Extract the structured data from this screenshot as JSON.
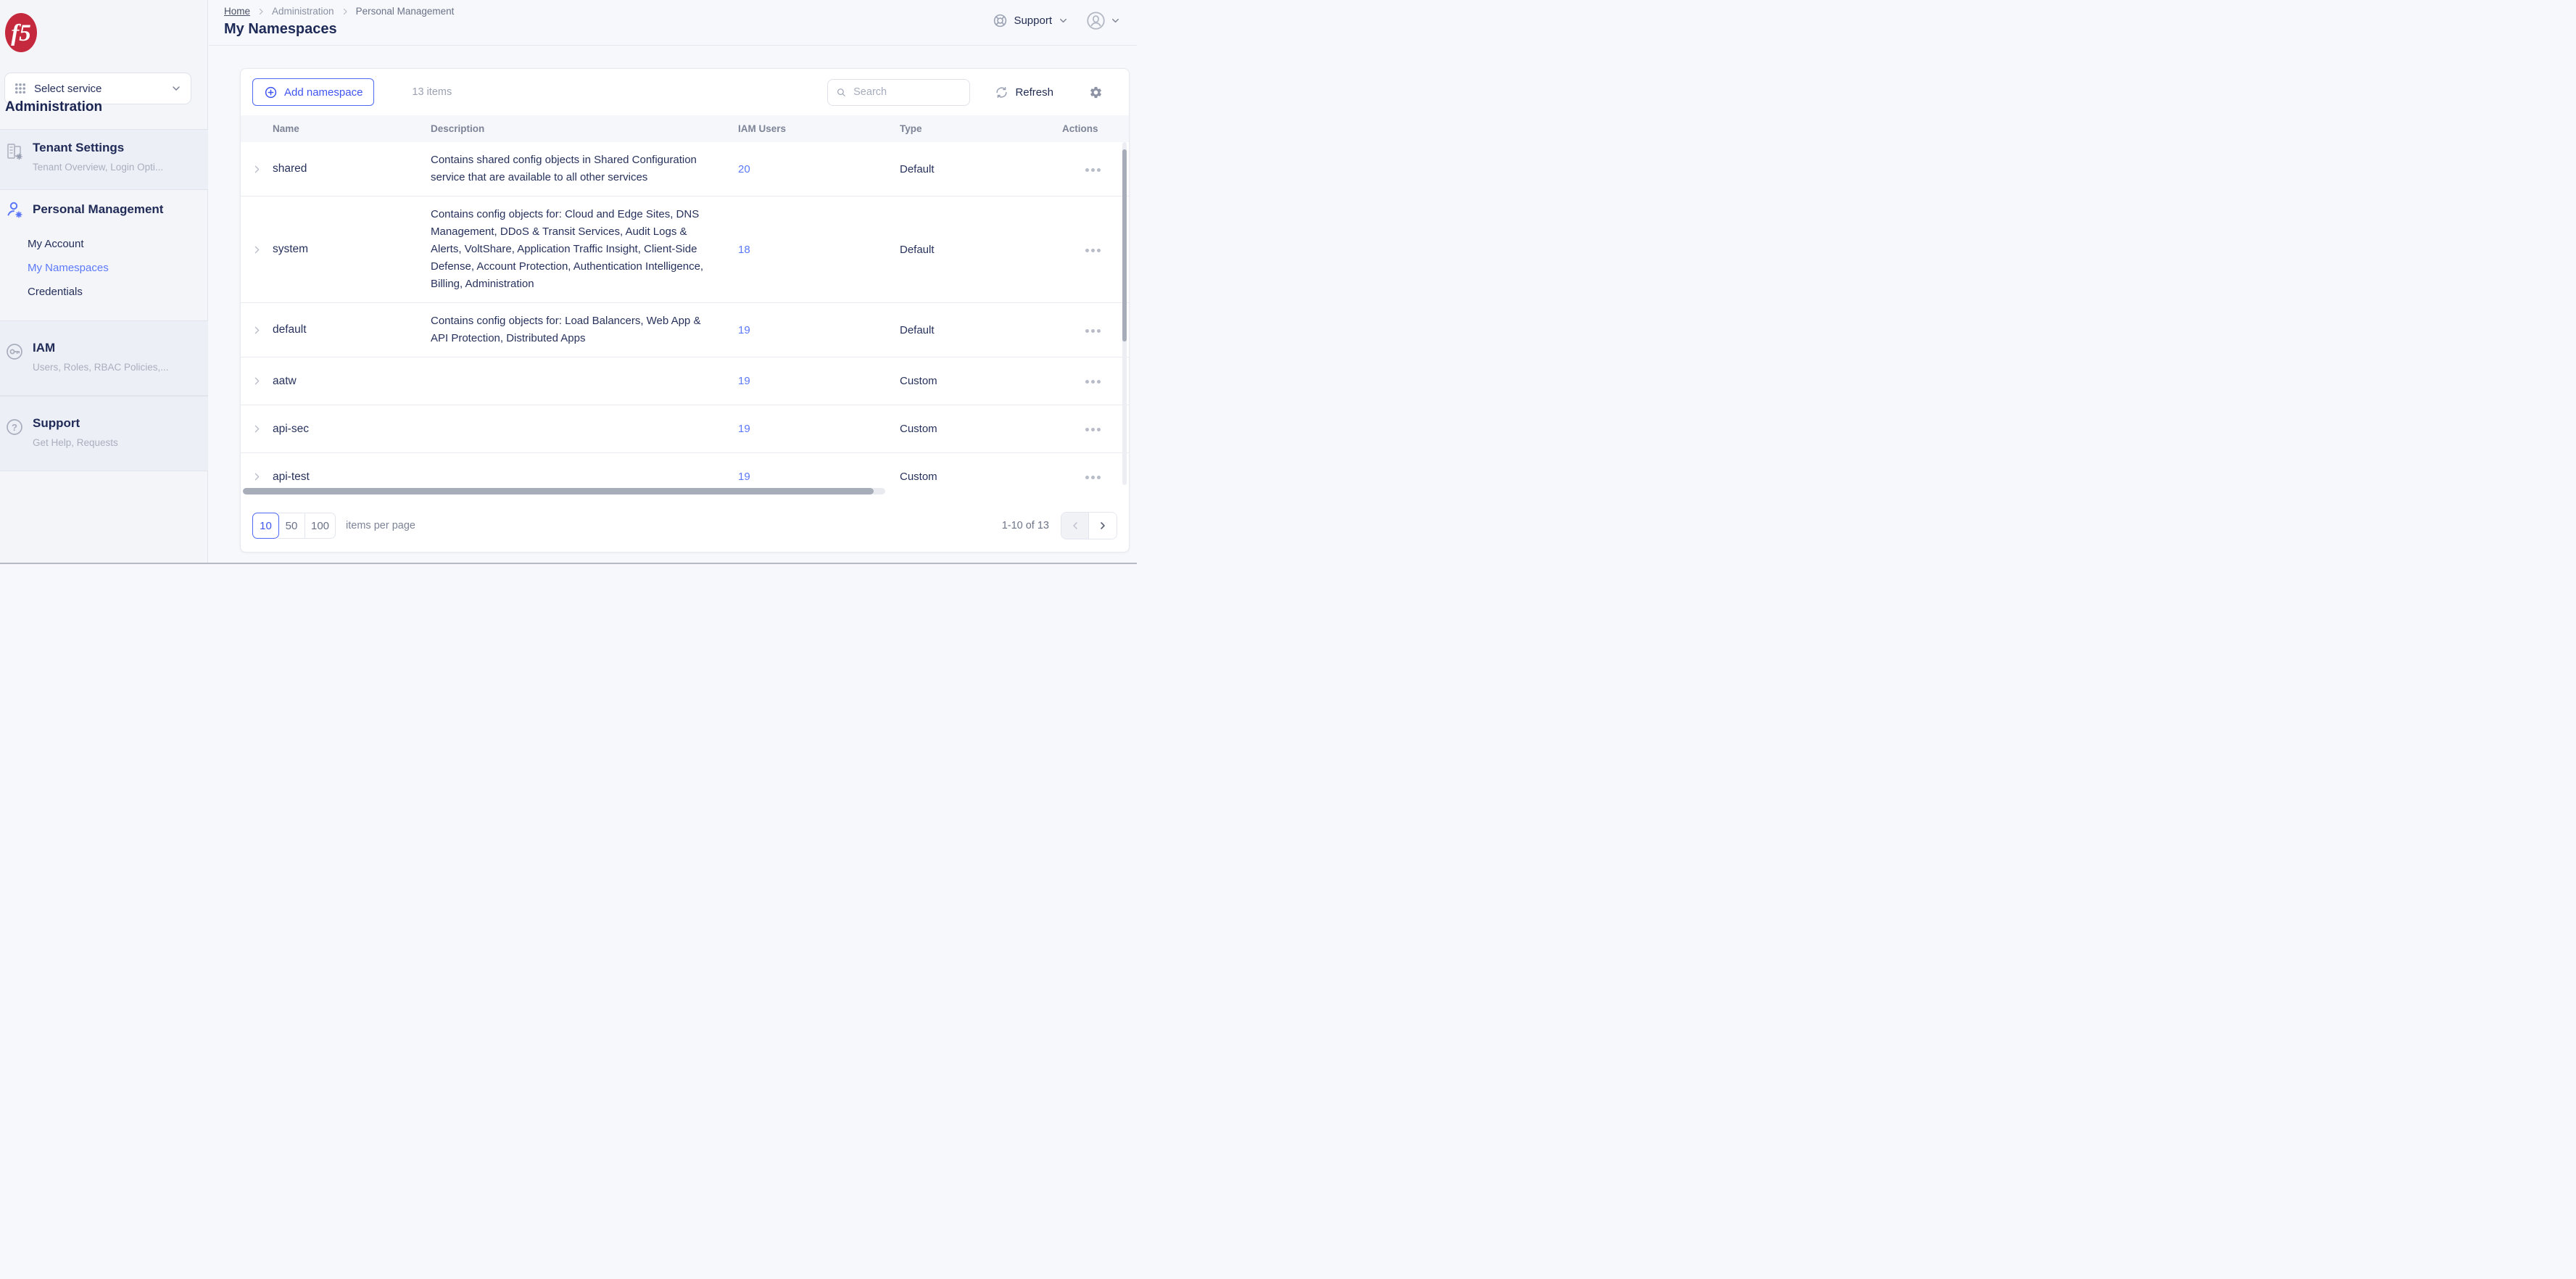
{
  "sidebar": {
    "logo_text": "f5",
    "service_select_label": "Select service",
    "section_heading": "Administration",
    "tenant_settings": {
      "title": "Tenant Settings",
      "subtitle": "Tenant Overview, Login Opti..."
    },
    "personal_management": {
      "title": "Personal Management",
      "items": [
        {
          "label": "My Account",
          "active": false
        },
        {
          "label": "My Namespaces",
          "active": true
        },
        {
          "label": "Credentials",
          "active": false
        }
      ]
    },
    "iam": {
      "title": "IAM",
      "subtitle": "Users, Roles, RBAC Policies,..."
    },
    "support": {
      "title": "Support",
      "subtitle": "Get Help, Requests"
    }
  },
  "header": {
    "breadcrumb": [
      "Home",
      "Administration",
      "Personal Management"
    ],
    "title": "My Namespaces",
    "support_label": "Support"
  },
  "toolbar": {
    "add_button_label": "Add namespace",
    "items_count": "13 items",
    "search_placeholder": "Search",
    "refresh_label": "Refresh"
  },
  "table": {
    "columns": [
      "Name",
      "Description",
      "IAM Users",
      "Type",
      "Actions"
    ],
    "rows": [
      {
        "name": "shared",
        "description": "Contains shared config objects in Shared Configuration service that are available to all other services",
        "iam_users": "20",
        "type": "Default"
      },
      {
        "name": "system",
        "description": "Contains config objects for: Cloud and Edge Sites, DNS Management, DDoS & Transit Services, Audit Logs & Alerts, VoltShare, Application Traffic Insight, Client-Side Defense, Account Protection, Authentication Intelligence, Billing, Administration",
        "iam_users": "18",
        "type": "Default"
      },
      {
        "name": "default",
        "description": "Contains config objects for: Load Balancers, Web App & API Protection, Distributed Apps",
        "iam_users": "19",
        "type": "Default"
      },
      {
        "name": "aatw",
        "description": "",
        "iam_users": "19",
        "type": "Custom"
      },
      {
        "name": "api-sec",
        "description": "",
        "iam_users": "19",
        "type": "Custom"
      },
      {
        "name": "api-test",
        "description": "",
        "iam_users": "19",
        "type": "Custom"
      }
    ]
  },
  "pagination": {
    "page_sizes": [
      "10",
      "50",
      "100"
    ],
    "selected_page_size": "10",
    "items_per_page_label": "items per page",
    "range_label": "1-10 of 13"
  },
  "colors": {
    "accent": "#4d68f4",
    "link": "#5b79f8",
    "brand_red": "#c5293d",
    "navy": "#1e2a57"
  }
}
